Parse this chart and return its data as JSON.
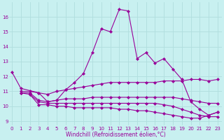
{
  "xlabel": "Windchill (Refroidissement éolien,°C)",
  "bg_color": "#c8f0f0",
  "grid_color": "#b0dede",
  "line_color": "#990099",
  "x_ticks": [
    0,
    1,
    2,
    3,
    4,
    5,
    6,
    7,
    8,
    9,
    10,
    11,
    12,
    13,
    14,
    15,
    16,
    17,
    18,
    19,
    20,
    21,
    22,
    23
  ],
  "y_ticks": [
    9,
    10,
    11,
    12,
    13,
    14,
    15,
    16
  ],
  "ylim": [
    8.7,
    17.0
  ],
  "xlim": [
    -0.3,
    23.5
  ],
  "series": [
    {
      "x": [
        0,
        1,
        3,
        4,
        5,
        6,
        7,
        8,
        9,
        10,
        11,
        12,
        13,
        14,
        15,
        16,
        17,
        18,
        19,
        20,
        21,
        22,
        23
      ],
      "y": [
        12.3,
        11.2,
        10.9,
        10.3,
        10.4,
        11.1,
        11.6,
        12.2,
        13.6,
        15.2,
        15.0,
        16.5,
        16.4,
        13.2,
        13.6,
        12.9,
        13.2,
        12.5,
        11.8,
        10.3,
        9.8,
        9.4,
        9.6
      ],
      "marker": true
    },
    {
      "x": [
        1,
        2,
        3,
        4,
        5,
        6,
        7,
        8,
        9,
        10,
        11,
        12,
        13,
        14,
        15,
        16,
        17,
        18,
        19,
        20,
        21,
        22,
        23
      ],
      "y": [
        11.0,
        11.0,
        10.9,
        10.8,
        11.0,
        11.1,
        11.2,
        11.3,
        11.4,
        11.5,
        11.6,
        11.6,
        11.6,
        11.6,
        11.6,
        11.6,
        11.7,
        11.7,
        11.7,
        11.8,
        11.8,
        11.7,
        11.8
      ],
      "marker": true
    },
    {
      "x": [
        1,
        2,
        3,
        4,
        5,
        6,
        7,
        8,
        9,
        10,
        11,
        12,
        13,
        14,
        15,
        16,
        17,
        18,
        19,
        20,
        21,
        22,
        23
      ],
      "y": [
        10.9,
        10.9,
        10.4,
        10.3,
        10.4,
        10.5,
        10.5,
        10.5,
        10.6,
        10.6,
        10.6,
        10.6,
        10.6,
        10.6,
        10.6,
        10.6,
        10.6,
        10.6,
        10.5,
        10.4,
        10.3,
        10.2,
        10.2
      ],
      "marker": true
    },
    {
      "x": [
        1,
        2,
        3,
        4,
        5,
        6,
        7,
        8,
        9,
        10,
        11,
        12,
        13,
        14,
        15,
        16,
        17,
        18,
        19,
        20,
        21,
        22,
        23
      ],
      "y": [
        10.9,
        10.8,
        10.3,
        10.2,
        10.2,
        10.2,
        10.2,
        10.2,
        10.2,
        10.2,
        10.2,
        10.2,
        10.2,
        10.2,
        10.2,
        10.2,
        10.1,
        10.0,
        9.8,
        9.6,
        9.4,
        9.3,
        9.3
      ],
      "marker": true
    },
    {
      "x": [
        2,
        3,
        4,
        5,
        6,
        7,
        8,
        9,
        10,
        11,
        12,
        13,
        14,
        15,
        16,
        17,
        18,
        19,
        20,
        21,
        22,
        23
      ],
      "y": [
        10.8,
        10.1,
        10.1,
        10.0,
        10.0,
        9.9,
        9.9,
        9.9,
        9.9,
        9.9,
        9.8,
        9.8,
        9.7,
        9.7,
        9.6,
        9.5,
        9.4,
        9.3,
        9.2,
        9.2,
        9.4,
        9.6
      ],
      "marker": true
    }
  ],
  "marker_symbol": "D",
  "marker_size": 2.2,
  "line_width": 0.8,
  "tick_fontsize": 5.0,
  "xlabel_fontsize": 5.5
}
